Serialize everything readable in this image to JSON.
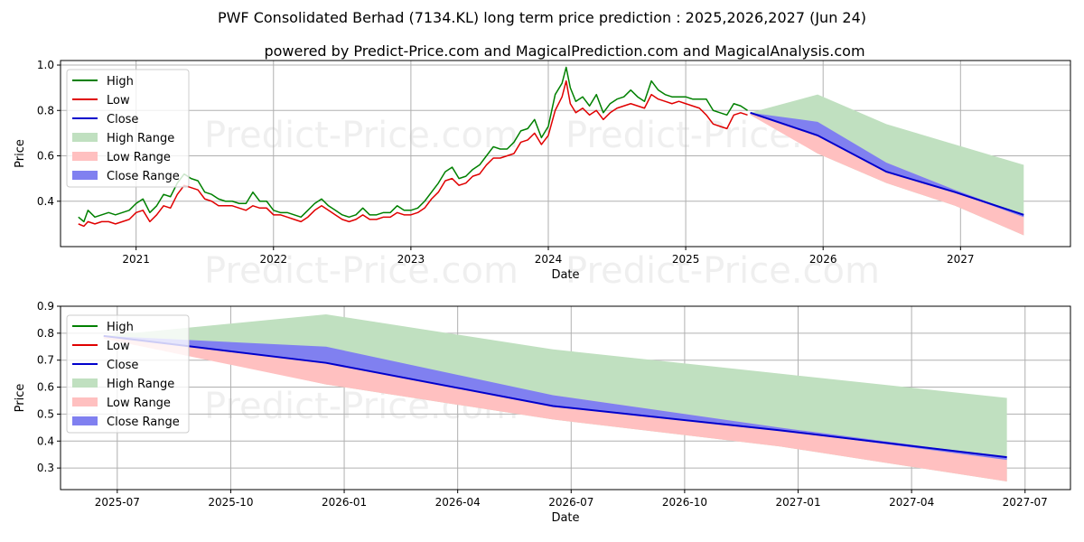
{
  "title": "PWF Consolidated Berhad (7134.KL) long term price prediction : 2025,2026,2027 (Jun 24)",
  "subtitle": "powered by Predict-Price.com and MagicalPrediction.com and MagicalAnalysis.com",
  "watermark": "Predict-Price.com",
  "colors": {
    "high": "#008000",
    "low": "#e00000",
    "close": "#0000cc",
    "high_range": "#c0e0c0",
    "low_range": "#ffc0c0",
    "close_range": "#8080f0"
  },
  "chart_data": [
    {
      "type": "line",
      "title": "",
      "xlabel": "Date",
      "ylabel": "Price",
      "xlim": [
        2020.45,
        2027.8
      ],
      "ylim": [
        0.2,
        1.02
      ],
      "xticks": [
        2021,
        2022,
        2023,
        2024,
        2025,
        2026,
        2027
      ],
      "xtick_labels": [
        "2021",
        "2022",
        "2023",
        "2024",
        "2025",
        "2026",
        "2027"
      ],
      "yticks": [
        0.4,
        0.6,
        0.8,
        1.0
      ],
      "ytick_labels": [
        "0.4",
        "0.6",
        "0.8",
        "1.0"
      ],
      "grid": true,
      "legend": [
        "High",
        "Low",
        "Close",
        "High Range",
        "Low Range",
        "Close Range"
      ],
      "legend_position": "top-left",
      "history": {
        "x": [
          2020.58,
          2020.62,
          2020.65,
          2020.7,
          2020.75,
          2020.8,
          2020.85,
          2020.9,
          2020.95,
          2021.0,
          2021.05,
          2021.1,
          2021.15,
          2021.2,
          2021.25,
          2021.3,
          2021.35,
          2021.4,
          2021.45,
          2021.5,
          2021.55,
          2021.6,
          2021.65,
          2021.7,
          2021.75,
          2021.8,
          2021.85,
          2021.9,
          2021.95,
          2022.0,
          2022.05,
          2022.1,
          2022.15,
          2022.2,
          2022.25,
          2022.3,
          2022.35,
          2022.4,
          2022.45,
          2022.5,
          2022.55,
          2022.6,
          2022.65,
          2022.7,
          2022.75,
          2022.8,
          2022.85,
          2022.9,
          2022.95,
          2023.0,
          2023.05,
          2023.1,
          2023.15,
          2023.2,
          2023.25,
          2023.3,
          2023.35,
          2023.4,
          2023.45,
          2023.5,
          2023.55,
          2023.6,
          2023.65,
          2023.7,
          2023.75,
          2023.8,
          2023.85,
          2023.9,
          2023.95,
          2024.0,
          2024.05,
          2024.1,
          2024.13,
          2024.16,
          2024.2,
          2024.25,
          2024.3,
          2024.35,
          2024.4,
          2024.45,
          2024.5,
          2024.55,
          2024.6,
          2024.65,
          2024.7,
          2024.75,
          2024.8,
          2024.85,
          2024.9,
          2024.95,
          2025.0,
          2025.05,
          2025.1,
          2025.15,
          2025.2,
          2025.25,
          2025.3,
          2025.35,
          2025.4,
          2025.45
        ],
        "high": [
          0.33,
          0.31,
          0.36,
          0.33,
          0.34,
          0.35,
          0.34,
          0.35,
          0.36,
          0.39,
          0.41,
          0.35,
          0.38,
          0.43,
          0.42,
          0.48,
          0.52,
          0.5,
          0.49,
          0.44,
          0.43,
          0.41,
          0.4,
          0.4,
          0.39,
          0.39,
          0.44,
          0.4,
          0.4,
          0.36,
          0.35,
          0.35,
          0.34,
          0.33,
          0.36,
          0.39,
          0.41,
          0.38,
          0.36,
          0.34,
          0.33,
          0.34,
          0.37,
          0.34,
          0.34,
          0.35,
          0.35,
          0.38,
          0.36,
          0.36,
          0.37,
          0.4,
          0.44,
          0.48,
          0.53,
          0.55,
          0.5,
          0.51,
          0.54,
          0.56,
          0.6,
          0.64,
          0.63,
          0.63,
          0.66,
          0.71,
          0.72,
          0.76,
          0.68,
          0.73,
          0.87,
          0.92,
          0.99,
          0.9,
          0.84,
          0.86,
          0.82,
          0.87,
          0.79,
          0.83,
          0.85,
          0.86,
          0.89,
          0.86,
          0.84,
          0.93,
          0.89,
          0.87,
          0.86,
          0.86,
          0.86,
          0.85,
          0.85,
          0.85,
          0.8,
          0.79,
          0.78,
          0.83,
          0.82,
          0.8
        ],
        "low": [
          0.3,
          0.29,
          0.31,
          0.3,
          0.31,
          0.31,
          0.3,
          0.31,
          0.32,
          0.35,
          0.36,
          0.31,
          0.34,
          0.38,
          0.37,
          0.43,
          0.47,
          0.46,
          0.45,
          0.41,
          0.4,
          0.38,
          0.38,
          0.38,
          0.37,
          0.36,
          0.38,
          0.37,
          0.37,
          0.34,
          0.34,
          0.33,
          0.32,
          0.31,
          0.33,
          0.36,
          0.38,
          0.36,
          0.34,
          0.32,
          0.31,
          0.32,
          0.34,
          0.32,
          0.32,
          0.33,
          0.33,
          0.35,
          0.34,
          0.34,
          0.35,
          0.37,
          0.41,
          0.44,
          0.49,
          0.5,
          0.47,
          0.48,
          0.51,
          0.52,
          0.56,
          0.59,
          0.59,
          0.6,
          0.61,
          0.66,
          0.67,
          0.7,
          0.65,
          0.69,
          0.8,
          0.86,
          0.93,
          0.83,
          0.79,
          0.81,
          0.78,
          0.8,
          0.76,
          0.79,
          0.81,
          0.82,
          0.83,
          0.82,
          0.81,
          0.87,
          0.85,
          0.84,
          0.83,
          0.84,
          0.83,
          0.82,
          0.81,
          0.78,
          0.74,
          0.73,
          0.72,
          0.78,
          0.79,
          0.78
        ]
      },
      "forecast": {
        "x": [
          2025.47,
          2025.96,
          2026.46,
          2026.96,
          2027.46
        ],
        "close": [
          0.79,
          0.69,
          0.53,
          0.44,
          0.34
        ],
        "high_range": [
          [
            0.79,
            0.79
          ],
          [
            0.87,
            0.61
          ],
          [
            0.74,
            0.48
          ],
          [
            0.65,
            0.38
          ],
          [
            0.56,
            0.25
          ]
        ],
        "low_range": [
          [
            0.79,
            0.78
          ],
          [
            0.73,
            0.61
          ],
          [
            0.57,
            0.48
          ],
          [
            0.45,
            0.38
          ],
          [
            0.34,
            0.25
          ]
        ],
        "close_range": [
          [
            0.79,
            0.79
          ],
          [
            0.75,
            0.69
          ],
          [
            0.57,
            0.53
          ],
          [
            0.45,
            0.44
          ],
          [
            0.34,
            0.33
          ]
        ]
      }
    },
    {
      "type": "line",
      "title": "",
      "xlabel": "Date",
      "ylabel": "Price",
      "xlim": [
        2025.375,
        2027.6
      ],
      "ylim": [
        0.22,
        0.9
      ],
      "xticks": [
        2025.5,
        2025.75,
        2026.0,
        2026.25,
        2026.5,
        2026.75,
        2027.0,
        2027.25,
        2027.5
      ],
      "xtick_labels": [
        "2025-07",
        "2025-10",
        "2026-01",
        "2026-04",
        "2026-07",
        "2026-10",
        "2027-01",
        "2027-04",
        "2027-07"
      ],
      "yticks": [
        0.3,
        0.4,
        0.5,
        0.6,
        0.7,
        0.8,
        0.9
      ],
      "ytick_labels": [
        "0.3",
        "0.4",
        "0.5",
        "0.6",
        "0.7",
        "0.8",
        "0.9"
      ],
      "grid": true,
      "legend": [
        "High",
        "Low",
        "Close",
        "High Range",
        "Low Range",
        "Close Range"
      ],
      "legend_position": "top-left",
      "forecast": {
        "x": [
          2025.47,
          2025.96,
          2026.46,
          2026.96,
          2027.46
        ],
        "close": [
          0.79,
          0.69,
          0.53,
          0.44,
          0.34
        ],
        "high_range": [
          [
            0.79,
            0.79
          ],
          [
            0.87,
            0.61
          ],
          [
            0.74,
            0.48
          ],
          [
            0.65,
            0.38
          ],
          [
            0.56,
            0.25
          ]
        ],
        "low_range": [
          [
            0.79,
            0.78
          ],
          [
            0.73,
            0.61
          ],
          [
            0.57,
            0.48
          ],
          [
            0.45,
            0.38
          ],
          [
            0.34,
            0.25
          ]
        ],
        "close_range": [
          [
            0.79,
            0.79
          ],
          [
            0.75,
            0.69
          ],
          [
            0.57,
            0.53
          ],
          [
            0.45,
            0.44
          ],
          [
            0.34,
            0.33
          ]
        ]
      }
    }
  ]
}
